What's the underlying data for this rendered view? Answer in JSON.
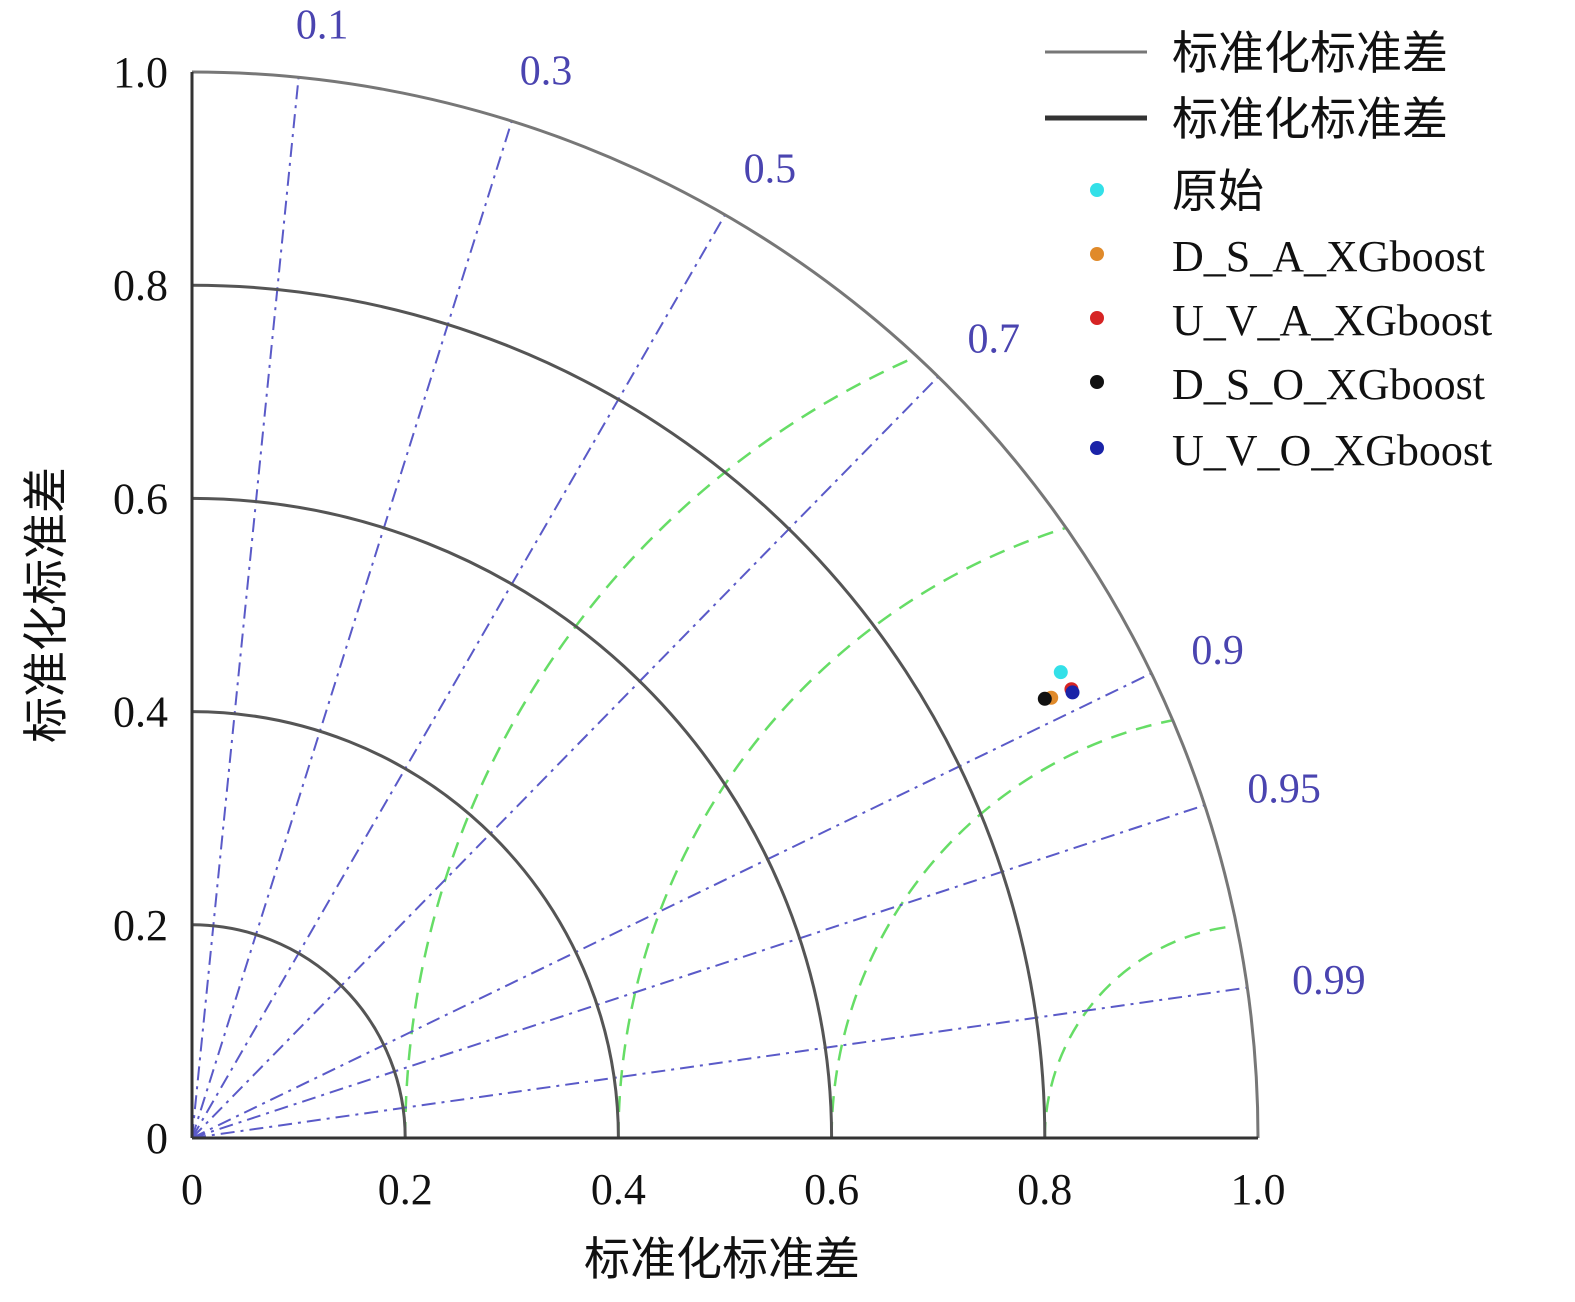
{
  "chart_data": {
    "type": "scatter",
    "subtype": "taylor-diagram",
    "xlabel": "标准化标准差",
    "ylabel": "标准化标准差",
    "xlim": [
      0,
      1.0
    ],
    "ylim": [
      0,
      1.0
    ],
    "x_ticks": [
      "0",
      "0.2",
      "0.4",
      "0.6",
      "0.8",
      "1.0"
    ],
    "y_ticks": [
      "0",
      "0.2",
      "0.4",
      "0.6",
      "0.8",
      "1.0"
    ],
    "std_arcs": [
      0.2,
      0.4,
      0.6,
      0.8,
      1.0
    ],
    "correlation_lines": [
      0.1,
      0.3,
      0.5,
      0.7,
      0.9,
      0.95,
      0.99
    ],
    "correlation_labels": [
      "0.1",
      "0.3",
      "0.5",
      "0.7",
      "0.9",
      "0.95",
      "0.99"
    ],
    "rms_arcs": [
      0.2,
      0.4,
      0.6,
      0.8
    ],
    "rms_center": 1.0,
    "legend_position": "top-right",
    "legend": [
      {
        "label": "标准化标准差",
        "kind": "line",
        "color": "#777777",
        "width": 3
      },
      {
        "label": "标准化标准差",
        "kind": "line",
        "color": "#333333",
        "width": 5
      },
      {
        "label": "原始",
        "kind": "point",
        "color": "#33e0e8"
      },
      {
        "label": "D_S_A_XGboost",
        "kind": "point",
        "color": "#e08a2a"
      },
      {
        "label": "U_V_A_XGboost",
        "kind": "point",
        "color": "#d62424"
      },
      {
        "label": "D_S_O_XGboost",
        "kind": "point",
        "color": "#111111"
      },
      {
        "label": "U_V_O_XGboost",
        "kind": "point",
        "color": "#1a23a8"
      }
    ],
    "series": [
      {
        "name": "原始",
        "x": 0.815,
        "y": 0.437,
        "color": "#33e0e8"
      },
      {
        "name": "D_S_A_XGboost",
        "x": 0.806,
        "y": 0.413,
        "color": "#e08a2a"
      },
      {
        "name": "U_V_A_XGboost",
        "x": 0.825,
        "y": 0.421,
        "color": "#d62424"
      },
      {
        "name": "D_S_O_XGboost",
        "x": 0.8,
        "y": 0.412,
        "color": "#111111"
      },
      {
        "name": "U_V_O_XGboost",
        "x": 0.826,
        "y": 0.418,
        "color": "#1a23a8"
      }
    ],
    "colors": {
      "std_arc": "#555555",
      "correlation": "#5a5ac8",
      "correlation_label": "#4a44b0",
      "rms": "#66dd66"
    }
  }
}
